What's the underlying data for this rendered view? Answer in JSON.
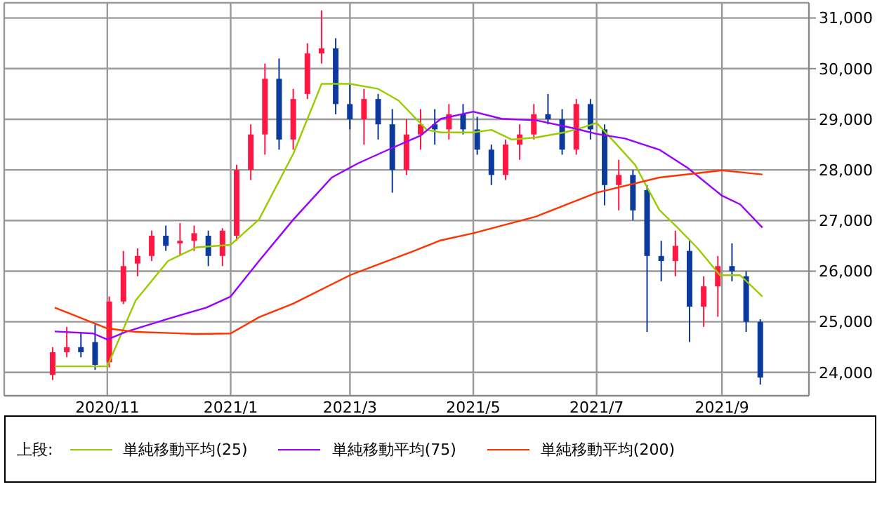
{
  "chart_data": {
    "type": "candlestick",
    "colors": [
      "#ff1744",
      "#ff1744",
      "#0b3a9c",
      "#0b3a9c",
      "#ff1744",
      "#ff1744",
      "#ff1744",
      "#ff1744",
      "#0b3a9c",
      "#ff1744",
      "#ff1744",
      "#0b3a9c",
      "#ff1744",
      "#ff1744",
      "#ff1744",
      "#ff1744",
      "#0b3a9c",
      "#ff1744",
      "#ff1744",
      "#ff1744",
      "#0b3a9c",
      "#0b3a9c",
      "#ff1744",
      "#0b3a9c",
      "#0b3a9c",
      "#ff1744",
      "#ff1744",
      "#0b3a9c",
      "#ff1744",
      "#0b3a9c",
      "#0b3a9c",
      "#0b3a9c",
      "#ff1744",
      "#ff1744",
      "#ff1744",
      "#0b3a9c",
      "#0b3a9c",
      "#ff1744",
      "#0b3a9c",
      "#0b3a9c",
      "#ff1744",
      "#0b3a9c",
      "#0b3a9c",
      "#0b3a9c",
      "#ff1744",
      "#0b3a9c",
      "#ff1744",
      "#ff1744",
      "#0b3a9c",
      "#0b3a9c",
      "#0b3a9c"
    ],
    "x": [
      "2020-10-05",
      "2020-10-12",
      "2020-10-19",
      "2020-10-26",
      "2020-11-02",
      "2020-11-09",
      "2020-11-16",
      "2020-11-23",
      "2020-11-30",
      "2020-12-07",
      "2020-12-14",
      "2020-12-21",
      "2020-12-28",
      "2021-01-04",
      "2021-01-11",
      "2021-01-18",
      "2021-01-25",
      "2021-02-01",
      "2021-02-08",
      "2021-02-15",
      "2021-02-22",
      "2021-03-01",
      "2021-03-08",
      "2021-03-15",
      "2021-03-22",
      "2021-03-29",
      "2021-04-05",
      "2021-04-12",
      "2021-04-19",
      "2021-04-26",
      "2021-05-03",
      "2021-05-10",
      "2021-05-17",
      "2021-05-24",
      "2021-05-31",
      "2021-06-07",
      "2021-06-14",
      "2021-06-21",
      "2021-06-28",
      "2021-07-05",
      "2021-07-12",
      "2021-07-19",
      "2021-07-26",
      "2021-08-02",
      "2021-08-09",
      "2021-08-16",
      "2021-08-23",
      "2021-08-30",
      "2021-09-06",
      "2021-09-13",
      "2021-09-20"
    ],
    "ohlc": [
      [
        23950,
        24500,
        23850,
        24400
      ],
      [
        24400,
        24900,
        24300,
        24500
      ],
      [
        24500,
        24800,
        24300,
        24400
      ],
      [
        24600,
        24950,
        24050,
        24150
      ],
      [
        24200,
        25500,
        24100,
        25400
      ],
      [
        25400,
        26400,
        25350,
        26100
      ],
      [
        26150,
        26450,
        25900,
        26300
      ],
      [
        26300,
        26800,
        26200,
        26700
      ],
      [
        26700,
        26900,
        26400,
        26500
      ],
      [
        26550,
        26950,
        26300,
        26600
      ],
      [
        26600,
        26900,
        26400,
        26750
      ],
      [
        26700,
        26800,
        26100,
        26300
      ],
      [
        26300,
        26850,
        26100,
        26800
      ],
      [
        26700,
        28100,
        26600,
        28000
      ],
      [
        28000,
        28900,
        27800,
        28700
      ],
      [
        28700,
        30100,
        28300,
        29800
      ],
      [
        29800,
        30200,
        28400,
        28600
      ],
      [
        28600,
        29600,
        28400,
        29400
      ],
      [
        29500,
        30500,
        29400,
        30300
      ],
      [
        30300,
        31150,
        30100,
        30400
      ],
      [
        30400,
        30600,
        29100,
        29300
      ],
      [
        29300,
        29700,
        28800,
        29000
      ],
      [
        29000,
        29600,
        28500,
        29400
      ],
      [
        29400,
        29500,
        28600,
        28900
      ],
      [
        28900,
        29200,
        27550,
        28000
      ],
      [
        28000,
        29000,
        27900,
        28700
      ],
      [
        28700,
        29200,
        28400,
        28900
      ],
      [
        28900,
        29200,
        28500,
        28800
      ],
      [
        28800,
        29300,
        28600,
        29100
      ],
      [
        29100,
        29300,
        28700,
        28800
      ],
      [
        28800,
        29050,
        28300,
        28400
      ],
      [
        28400,
        28500,
        27700,
        27900
      ],
      [
        27900,
        28600,
        27800,
        28500
      ],
      [
        28500,
        28900,
        28200,
        28700
      ],
      [
        28700,
        29300,
        28600,
        29100
      ],
      [
        29100,
        29500,
        28900,
        29000
      ],
      [
        29000,
        29200,
        28300,
        28400
      ],
      [
        28400,
        29400,
        28300,
        29300
      ],
      [
        29300,
        29400,
        28600,
        28800
      ],
      [
        28800,
        28900,
        27300,
        27700
      ],
      [
        27700,
        28200,
        27200,
        27900
      ],
      [
        27900,
        28000,
        27000,
        27200
      ],
      [
        27600,
        27700,
        24800,
        26300
      ],
      [
        26300,
        26600,
        25800,
        26200
      ],
      [
        26200,
        26800,
        25900,
        26500
      ],
      [
        26400,
        26600,
        24600,
        25300
      ],
      [
        25300,
        25900,
        24900,
        25700
      ],
      [
        25700,
        26300,
        25100,
        26100
      ],
      [
        26100,
        26550,
        25800,
        26000
      ],
      [
        25900,
        26000,
        24800,
        25000
      ],
      [
        25000,
        25050,
        23760,
        23900
      ]
    ],
    "series": [
      {
        "type": "line",
        "name": "単純移動平均(25)",
        "color": "#99cc00",
        "x": [
          "2020-10-06",
          "2020-11-01",
          "2020-11-15",
          "2020-12-01",
          "2020-12-15",
          "2021-01-01",
          "2021-01-15",
          "2021-02-01",
          "2021-02-15",
          "2021-03-01",
          "2021-03-15",
          "2021-03-25",
          "2021-04-08",
          "2021-04-15",
          "2021-05-01",
          "2021-05-10",
          "2021-05-20",
          "2021-06-01",
          "2021-06-15",
          "2021-06-25",
          "2021-07-01",
          "2021-07-10",
          "2021-07-20",
          "2021-08-01",
          "2021-08-10",
          "2021-08-20",
          "2021-08-31",
          "2021-09-10",
          "2021-09-21"
        ],
        "values": [
          24120,
          24120,
          25420,
          26200,
          26470,
          26520,
          27020,
          28320,
          29700,
          29700,
          29600,
          29370,
          28790,
          28740,
          28740,
          28790,
          28600,
          28640,
          28740,
          28850,
          28930,
          28540,
          28100,
          27210,
          26860,
          26450,
          25920,
          25920,
          25500
        ]
      },
      {
        "type": "line",
        "name": "単純移動平均(75)",
        "color": "#9900ff",
        "x": [
          "2020-10-06",
          "2020-10-25",
          "2020-11-01",
          "2020-11-10",
          "2020-12-01",
          "2020-12-20",
          "2021-01-01",
          "2021-01-15",
          "2021-02-01",
          "2021-02-20",
          "2021-03-05",
          "2021-03-20",
          "2021-04-05",
          "2021-04-15",
          "2021-05-01",
          "2021-05-15",
          "2021-06-01",
          "2021-06-20",
          "2021-07-01",
          "2021-07-15",
          "2021-08-01",
          "2021-08-15",
          "2021-09-01",
          "2021-09-10",
          "2021-09-21"
        ],
        "values": [
          24810,
          24770,
          24650,
          24800,
          25060,
          25280,
          25500,
          26200,
          27020,
          27850,
          28130,
          28400,
          28680,
          29010,
          29150,
          29010,
          28980,
          28820,
          28710,
          28620,
          28400,
          28040,
          27490,
          27320,
          26860
        ]
      },
      {
        "type": "line",
        "name": "単純移動平均(200)",
        "color": "#ff3300",
        "x": [
          "2020-10-06",
          "2020-11-01",
          "2020-11-15",
          "2020-12-15",
          "2021-01-01",
          "2021-01-15",
          "2021-02-01",
          "2021-03-01",
          "2021-04-01",
          "2021-04-15",
          "2021-05-01",
          "2021-06-01",
          "2021-07-01",
          "2021-08-01",
          "2021-09-01",
          "2021-09-21"
        ],
        "values": [
          25280,
          24870,
          24800,
          24760,
          24770,
          25090,
          25360,
          25920,
          26390,
          26610,
          26750,
          27080,
          27550,
          27850,
          27990,
          27910
        ]
      }
    ],
    "legend_title": "上段:",
    "legend": "bottom",
    "grid": true,
    "xlim": [
      "2020-09-11",
      "2021-10-14"
    ],
    "xticks": [
      {
        "value": "2020-11-01",
        "label": "2020/11"
      },
      {
        "value": "2021-01-01",
        "label": "2021/1"
      },
      {
        "value": "2021-03-01",
        "label": "2021/3"
      },
      {
        "value": "2021-05-01",
        "label": "2021/5"
      },
      {
        "value": "2021-07-01",
        "label": "2021/7"
      },
      {
        "value": "2021-09-01",
        "label": "2021/9"
      }
    ],
    "ylim": [
      23540,
      31300
    ],
    "yticks": [
      {
        "value": 24000,
        "label": "24,000"
      },
      {
        "value": 25000,
        "label": "25,000"
      },
      {
        "value": 26000,
        "label": "26,000"
      },
      {
        "value": 27000,
        "label": "27,000"
      },
      {
        "value": 28000,
        "label": "28,000"
      },
      {
        "value": 29000,
        "label": "29,000"
      },
      {
        "value": 30000,
        "label": "30,000"
      },
      {
        "value": 31000,
        "label": "31,000"
      }
    ]
  }
}
